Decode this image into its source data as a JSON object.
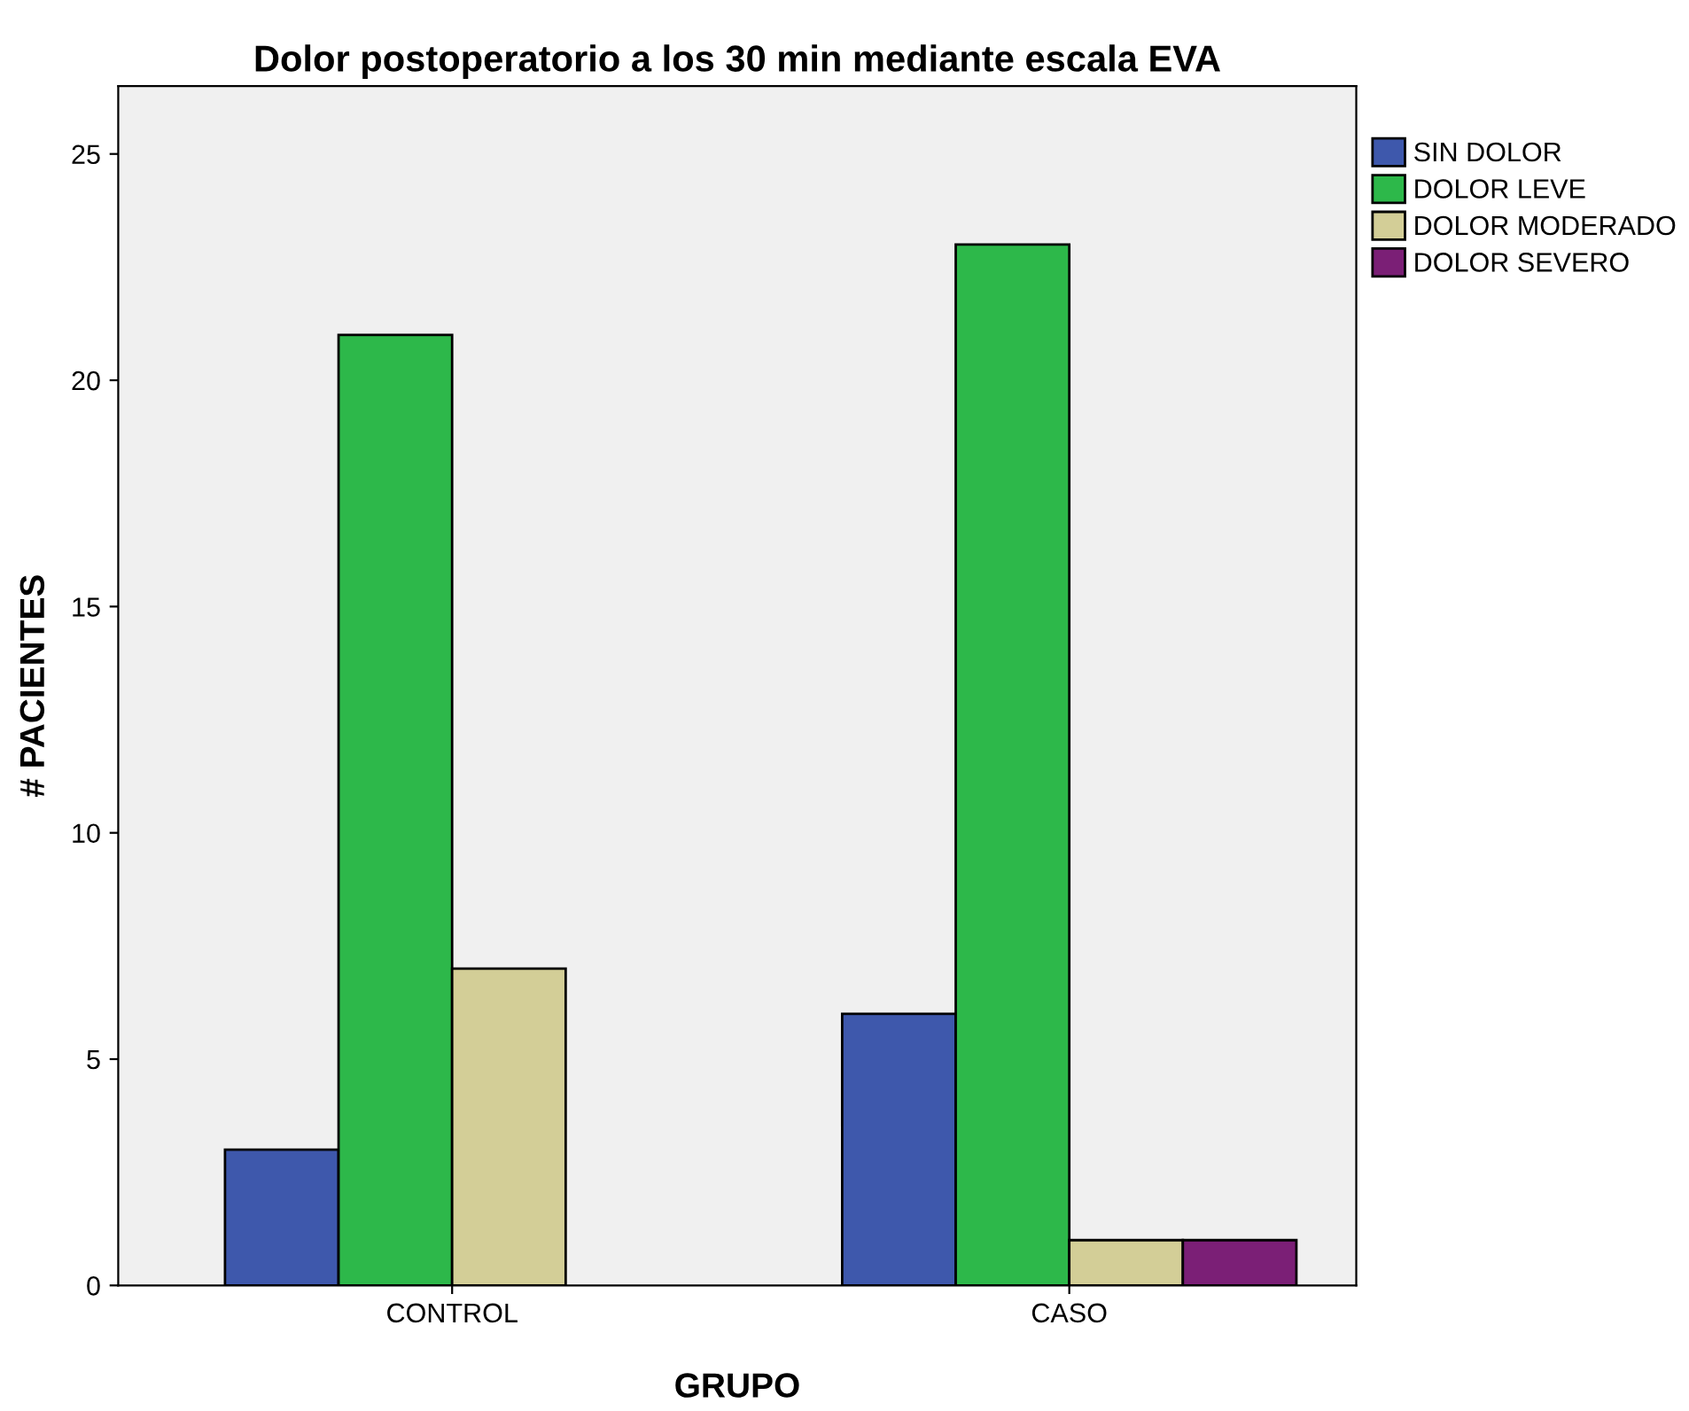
{
  "chart_data": {
    "type": "bar",
    "title": "Dolor postoperatorio a los 30 min mediante escala EVA",
    "xlabel": "GRUPO",
    "ylabel": "# PACIENTES",
    "categories": [
      "CONTROL",
      "CASO"
    ],
    "series": [
      {
        "name": "SIN DOLOR",
        "color": "#3e58ac",
        "values": [
          3,
          6
        ]
      },
      {
        "name": "DOLOR LEVE",
        "color": "#2db84a",
        "values": [
          21,
          23
        ]
      },
      {
        "name": "DOLOR MODERADO",
        "color": "#d3ce97",
        "values": [
          7,
          1
        ]
      },
      {
        "name": "DOLOR SEVERO",
        "color": "#7b1f76",
        "values": [
          null,
          1
        ]
      }
    ],
    "ylim": [
      0,
      26.5
    ],
    "yticks": [
      0,
      5,
      10,
      15,
      20,
      25
    ],
    "grid": false,
    "legend": "right"
  }
}
